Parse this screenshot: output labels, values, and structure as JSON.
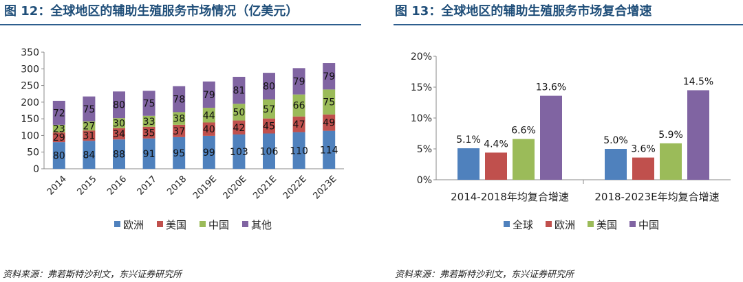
{
  "left_panel": {
    "title": "图 12：全球地区的辅助生殖服务市场情况（亿美元）",
    "source": "资料来源：弗若斯特沙利文，东兴证券研究所"
  },
  "right_panel": {
    "title": "图 13：全球地区的辅助生殖服务市场复合增速",
    "source": "资料来源：弗若斯特沙利文，东兴证券研究所"
  },
  "chart_data": [
    {
      "type": "bar",
      "stacked": true,
      "title": "全球地区的辅助生殖服务市场情况（亿美元）",
      "categories": [
        "2014",
        "2015",
        "2016",
        "2017",
        "2018",
        "2019E",
        "2020E",
        "2021E",
        "2022E",
        "2023E"
      ],
      "series": [
        {
          "name": "欧洲",
          "color": "#4f81bd",
          "values": [
            80,
            84,
            88,
            91,
            95,
            99,
            103,
            106,
            110,
            114
          ]
        },
        {
          "name": "美国",
          "color": "#c0504d",
          "values": [
            29,
            31,
            34,
            35,
            37,
            40,
            42,
            45,
            47,
            49
          ]
        },
        {
          "name": "中国",
          "color": "#9bbb59",
          "values": [
            23,
            27,
            30,
            33,
            38,
            44,
            50,
            57,
            66,
            75
          ]
        },
        {
          "name": "其他",
          "color": "#8064a2",
          "values": [
            72,
            75,
            80,
            75,
            78,
            79,
            81,
            80,
            79,
            79
          ]
        }
      ],
      "yticks": [
        "0",
        "50",
        "100",
        "150",
        "200",
        "250",
        "300",
        "350"
      ],
      "ylim": [
        0,
        350
      ],
      "grid": false,
      "legend": "bottom"
    },
    {
      "type": "bar",
      "stacked": false,
      "title": "全球地区的辅助生殖服务市场复合增速",
      "categories": [
        "2014-2018年均复合增速",
        "2018-2023E年均复合增速"
      ],
      "series": [
        {
          "name": "全球",
          "color": "#4f81bd",
          "values": [
            5.1,
            5.0
          ],
          "labels": [
            "5.1%",
            "5.0%"
          ]
        },
        {
          "name": "欧洲",
          "color": "#c0504d",
          "values": [
            4.4,
            3.6
          ],
          "labels": [
            "4.4%",
            "3.6%"
          ]
        },
        {
          "name": "美国",
          "color": "#9bbb59",
          "values": [
            6.6,
            5.9
          ],
          "labels": [
            "6.6%",
            "5.9%"
          ]
        },
        {
          "name": "中国",
          "color": "#8064a2",
          "values": [
            13.6,
            14.5
          ],
          "labels": [
            "13.6%",
            "14.5%"
          ]
        }
      ],
      "yticks": [
        "0%",
        "5%",
        "10%",
        "15%",
        "20%"
      ],
      "ylim": [
        0,
        20
      ],
      "grid": false,
      "legend": "bottom"
    }
  ]
}
